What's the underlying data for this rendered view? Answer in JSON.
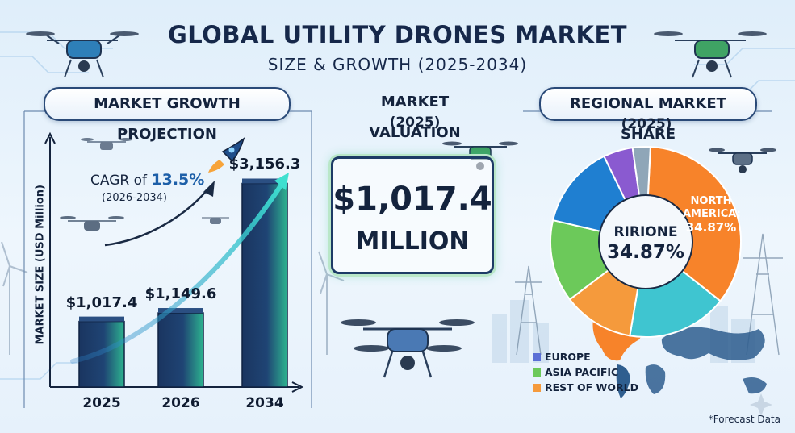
{
  "header": {
    "title": "GLOBAL UTILITY DRONES MARKET",
    "subtitle": "SIZE & GROWTH (2025-2034)"
  },
  "growth_panel": {
    "heading": "MARKET GROWTH PROJECTION",
    "cagr_prefix": "CAGR of",
    "cagr_value": "13.5%",
    "cagr_period": "(2026-2034)"
  },
  "valuation_panel": {
    "heading": "MARKET VALUATION",
    "year": "(2025)",
    "value": "$1,017.4",
    "unit": "MILLION"
  },
  "regional_panel": {
    "heading": "REGIONAL MARKET SHARE",
    "year": "(2025)",
    "center_line1": "RIRIONE",
    "center_line2": "34.87%",
    "callout_line1": "NORTH",
    "callout_line2": "AMERICA:",
    "callout_line3": "34.87%"
  },
  "footnote": "*Forecast Data",
  "colors": {
    "north_america": "#f7832a",
    "europe": "#5b6fd6",
    "asia_pacific": "#6cc95a",
    "rest_of_world": "#f59a3c",
    "blue_slice": "#1f7fd1",
    "teal_slice": "#3fc5d0",
    "bar_dark": "#1a3560",
    "bar_accent": "#39c4a0"
  },
  "chart_data": [
    {
      "type": "bar",
      "ylabel": "MARKET SIZE (USD Million)",
      "categories": [
        "2025",
        "2026",
        "2034"
      ],
      "values": [
        1017.4,
        1149.6,
        3156.3
      ],
      "value_labels": [
        "$1,017.4",
        "$1,149.6",
        "$3,156.3"
      ],
      "ylim": [
        0,
        3500
      ]
    },
    {
      "type": "pie",
      "slices": [
        {
          "label": "NORTH AMERICA",
          "value": 34.87,
          "color": "#f7832a"
        },
        {
          "label": "",
          "value": 17.0,
          "color": "#3fc5d0"
        },
        {
          "label": "",
          "value": 12.0,
          "color": "#f59a3c"
        },
        {
          "label": "",
          "value": 14.0,
          "color": "#6cc95a"
        },
        {
          "label": "",
          "value": 14.13,
          "color": "#1f7fd1"
        },
        {
          "label": "",
          "value": 5.0,
          "color": "#8a5ad0"
        },
        {
          "label": "",
          "value": 3.0,
          "color": "#8fa6b8"
        }
      ],
      "legend": [
        "EUROPE",
        "ASIA PACIFIC",
        "REST OF WORLD"
      ],
      "legend_colors": [
        "#5b6fd6",
        "#6cc95a",
        "#f59a3c"
      ],
      "legend_position": "bottom"
    }
  ]
}
